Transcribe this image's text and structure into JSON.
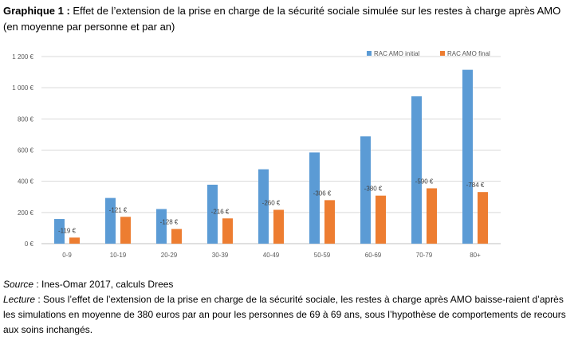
{
  "title": {
    "prefix": "Graphique 1 :",
    "text": "Effet de l’extension de la prise en charge de la sécurité sociale simulée sur les restes à charge après AMO (en moyenne par personne et par an)"
  },
  "chart_data": {
    "type": "bar",
    "categories": [
      "0-9",
      "10-19",
      "20-29",
      "30-39",
      "40-49",
      "50-59",
      "60-69",
      "70-79",
      "80+"
    ],
    "series": [
      {
        "name": "RAC AMO initial",
        "color": "#5B9BD5",
        "values": [
          158,
          293,
          222,
          378,
          477,
          585,
          688,
          945,
          1115
        ]
      },
      {
        "name": "RAC AMO final",
        "color": "#ED7D31",
        "values": [
          39,
          172,
          94,
          162,
          217,
          279,
          308,
          355,
          331
        ]
      }
    ],
    "data_labels": [
      "-119 €",
      "-121 €",
      "-128 €",
      "-216 €",
      "-260 €",
      "-306 €",
      "-380 €",
      "-590 €",
      "-784 €"
    ],
    "yticks": [
      "0 €",
      "200 €",
      "400 €",
      "600 €",
      "800 €",
      "1 000 €",
      "1 200 €"
    ],
    "ylim": [
      0,
      1200
    ],
    "ystep": 200,
    "grid": true,
    "legend_position": "top-right",
    "xlabel": "",
    "ylabel": ""
  },
  "footer": {
    "source_label": "Source",
    "source_text": " : Ines-Omar 2017, calculs Drees",
    "lecture_label": "Lecture",
    "lecture_text": " : Sous l’effet de l’extension de la prise en charge de la sécurité sociale, les restes à charge après AMO baisse-raient d’après les simulations en moyenne de 380 euros par an pour les personnes de 69 à 69 ans, sous l’hypothèse de comportements de recours aux soins inchangés."
  }
}
